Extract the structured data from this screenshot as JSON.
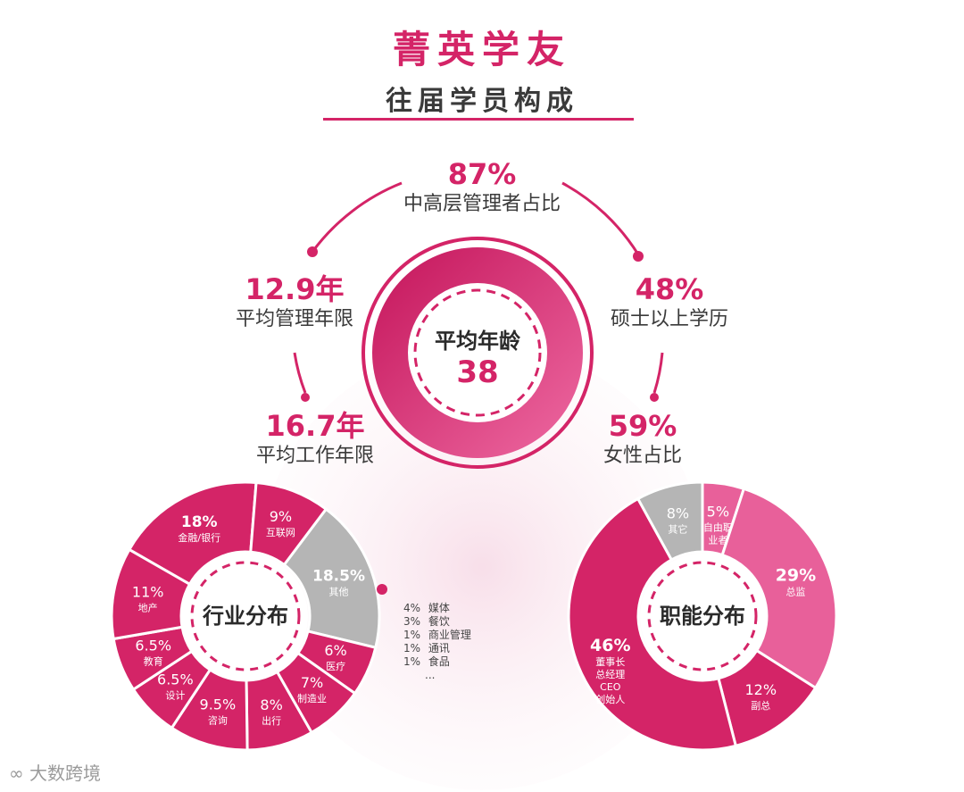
{
  "header": {
    "title": "菁英学友",
    "subtitle": "往届学员构成"
  },
  "center": {
    "label": "平均年龄",
    "value": "38"
  },
  "stats": {
    "management_ratio": {
      "value": "87%",
      "label": "中高层管理者占比"
    },
    "avg_mgmt_years": {
      "value": "12.9年",
      "label": "平均管理年限"
    },
    "master_degree": {
      "value": "48%",
      "label": "硕士以上学历"
    },
    "avg_work_years": {
      "value": "16.7年",
      "label": "平均工作年限"
    },
    "female_ratio": {
      "value": "59%",
      "label": "女性占比"
    }
  },
  "colors": {
    "accent": "#d42467",
    "pink_light": "#e8609a",
    "grey": "#b5b5b5"
  },
  "other_breakdown": [
    {
      "pct": "4%",
      "name": "媒体"
    },
    {
      "pct": "3%",
      "name": "餐饮"
    },
    {
      "pct": "1%",
      "name": "商业管理"
    },
    {
      "pct": "1%",
      "name": "通讯"
    },
    {
      "pct": "1%",
      "name": "食品"
    },
    {
      "pct": "",
      "name": "..."
    }
  ],
  "watermark": "大数跨境",
  "chart_data": [
    {
      "type": "pie",
      "title": "行业分布",
      "series": [
        {
          "name": "其他",
          "pct": "18.5%",
          "value": 18.5
        },
        {
          "name": "医疗",
          "pct": "6%",
          "value": 6
        },
        {
          "name": "制造业",
          "pct": "7%",
          "value": 7
        },
        {
          "name": "出行",
          "pct": "8%",
          "value": 8
        },
        {
          "name": "咨询",
          "pct": "9.5%",
          "value": 9.5
        },
        {
          "name": "设计",
          "pct": "6.5%",
          "value": 6.5
        },
        {
          "name": "教育",
          "pct": "6.5%",
          "value": 6.5
        },
        {
          "name": "地产",
          "pct": "11%",
          "value": 11
        },
        {
          "name": "金融/银行",
          "pct": "18%",
          "value": 18
        },
        {
          "name": "互联网",
          "pct": "9%",
          "value": 9
        }
      ]
    },
    {
      "type": "pie",
      "title": "职能分布",
      "series": [
        {
          "name": "自由职业者",
          "pct": "5%",
          "value": 5
        },
        {
          "name": "总监",
          "pct": "29%",
          "value": 29
        },
        {
          "name": "副总",
          "pct": "12%",
          "value": 12
        },
        {
          "name": "董事长 总经理 CEO 创始人",
          "pct": "46%",
          "value": 46
        },
        {
          "name": "其它",
          "pct": "8%",
          "value": 8
        }
      ]
    }
  ]
}
